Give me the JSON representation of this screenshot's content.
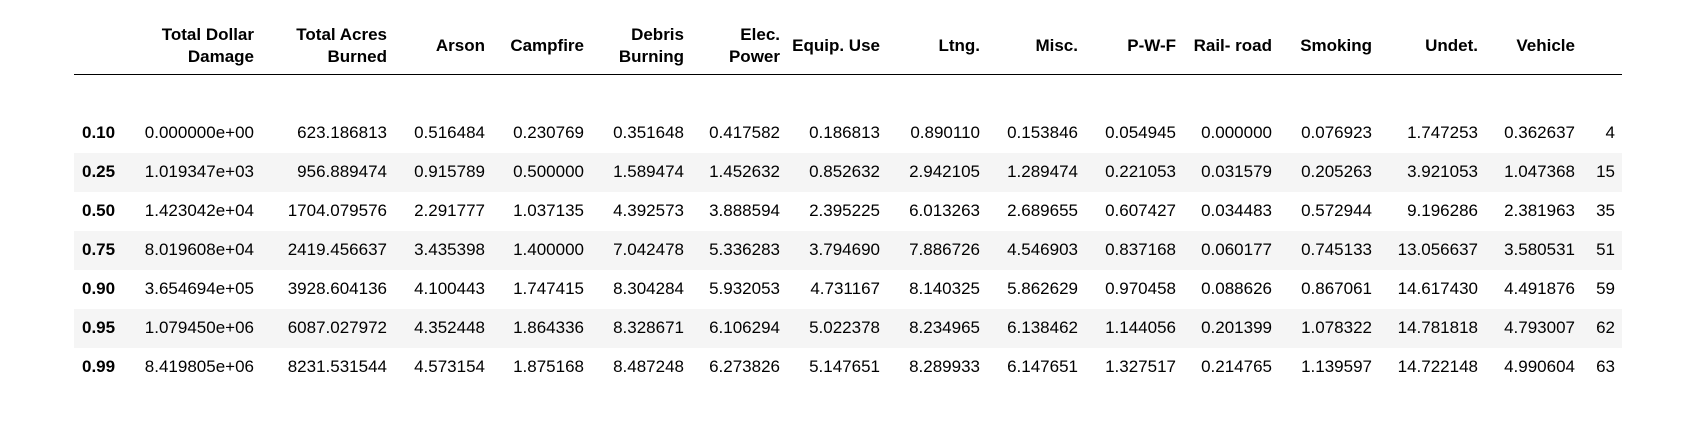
{
  "table": {
    "index_header": "",
    "columns": [
      "Total Dollar Damage",
      "Total Acres Burned",
      "Arson",
      "Campfire",
      "Debris Burning",
      "Elec. Power",
      "Equip. Use",
      "Ltng.",
      "Misc.",
      "P-W-F",
      "Rail- road",
      "Smoking",
      "Undet.",
      "Vehicle",
      ""
    ],
    "rows": [
      {
        "index": "0.10",
        "cells": [
          "0.000000e+00",
          "623.186813",
          "0.516484",
          "0.230769",
          "0.351648",
          "0.417582",
          "0.186813",
          "0.890110",
          "0.153846",
          "0.054945",
          "0.000000",
          "0.076923",
          "1.747253",
          "0.362637",
          "4"
        ]
      },
      {
        "index": "0.25",
        "cells": [
          "1.019347e+03",
          "956.889474",
          "0.915789",
          "0.500000",
          "1.589474",
          "1.452632",
          "0.852632",
          "2.942105",
          "1.289474",
          "0.221053",
          "0.031579",
          "0.205263",
          "3.921053",
          "1.047368",
          "15"
        ]
      },
      {
        "index": "0.50",
        "cells": [
          "1.423042e+04",
          "1704.079576",
          "2.291777",
          "1.037135",
          "4.392573",
          "3.888594",
          "2.395225",
          "6.013263",
          "2.689655",
          "0.607427",
          "0.034483",
          "0.572944",
          "9.196286",
          "2.381963",
          "35"
        ]
      },
      {
        "index": "0.75",
        "cells": [
          "8.019608e+04",
          "2419.456637",
          "3.435398",
          "1.400000",
          "7.042478",
          "5.336283",
          "3.794690",
          "7.886726",
          "4.546903",
          "0.837168",
          "0.060177",
          "0.745133",
          "13.056637",
          "3.580531",
          "51"
        ]
      },
      {
        "index": "0.90",
        "cells": [
          "3.654694e+05",
          "3928.604136",
          "4.100443",
          "1.747415",
          "8.304284",
          "5.932053",
          "4.731167",
          "8.140325",
          "5.862629",
          "0.970458",
          "0.088626",
          "0.867061",
          "14.617430",
          "4.491876",
          "59"
        ]
      },
      {
        "index": "0.95",
        "cells": [
          "1.079450e+06",
          "6087.027972",
          "4.352448",
          "1.864336",
          "8.328671",
          "6.106294",
          "5.022378",
          "8.234965",
          "6.138462",
          "1.144056",
          "0.201399",
          "1.078322",
          "14.781818",
          "4.793007",
          "62"
        ]
      },
      {
        "index": "0.99",
        "cells": [
          "8.419805e+06",
          "8231.531544",
          "4.573154",
          "1.875168",
          "8.487248",
          "6.273826",
          "5.147651",
          "8.289933",
          "6.147651",
          "1.327517",
          "0.214765",
          "1.139597",
          "14.722148",
          "4.990604",
          "63"
        ]
      }
    ]
  }
}
